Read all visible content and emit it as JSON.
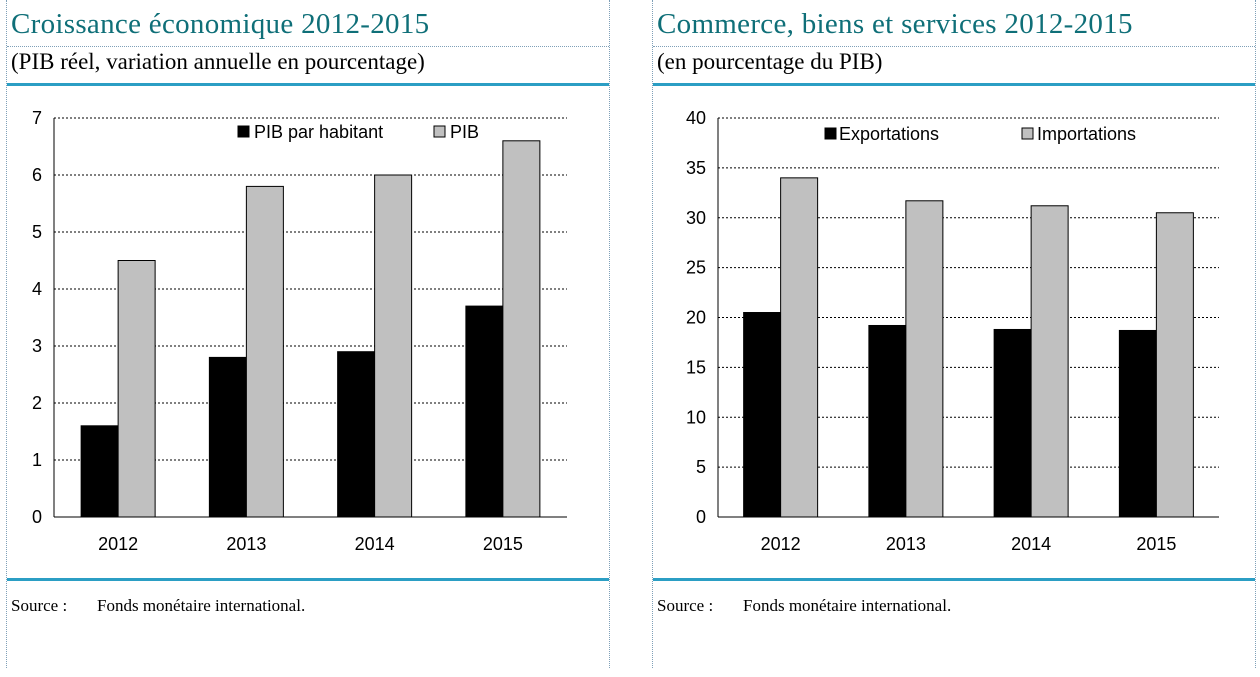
{
  "panels": [
    {
      "title": "Croissance économique 2012-2015",
      "subtitle": "(PIB réel, variation annuelle en pourcentage)",
      "source_label": "Source :",
      "source_text": "Fonds monétaire international."
    },
    {
      "title": "Commerce, biens et services 2012-2015",
      "subtitle": "(en pourcentage du PIB)",
      "source_label": "Source :",
      "source_text": "Fonds monétaire international."
    }
  ],
  "chart_data": [
    {
      "type": "bar",
      "title": "Croissance économique 2012-2015",
      "subtitle": "(PIB réel, variation annuelle en pourcentage)",
      "categories": [
        "2012",
        "2013",
        "2014",
        "2015"
      ],
      "series": [
        {
          "name": "PIB par habitant",
          "values": [
            1.6,
            2.8,
            2.9,
            3.7
          ],
          "color": "#000000"
        },
        {
          "name": "PIB",
          "values": [
            4.5,
            5.8,
            6.0,
            6.6
          ],
          "color": "#c0c0c0"
        }
      ],
      "ylim": [
        0,
        7
      ],
      "yticks": [
        0,
        1,
        2,
        3,
        4,
        5,
        6,
        7
      ],
      "grid": "horizontal dashed",
      "legend": "top"
    },
    {
      "type": "bar",
      "title": "Commerce, biens et services 2012-2015",
      "subtitle": "(en pourcentage du PIB)",
      "categories": [
        "2012",
        "2013",
        "2014",
        "2015"
      ],
      "series": [
        {
          "name": "Exportations",
          "values": [
            20.5,
            19.2,
            18.8,
            18.7
          ],
          "color": "#000000"
        },
        {
          "name": "Importations",
          "values": [
            34.0,
            31.7,
            31.2,
            30.5
          ],
          "color": "#c0c0c0"
        }
      ],
      "ylim": [
        0,
        40
      ],
      "yticks": [
        0,
        5,
        10,
        15,
        20,
        25,
        30,
        35,
        40
      ],
      "grid": "horizontal dashed",
      "legend": "top"
    }
  ]
}
